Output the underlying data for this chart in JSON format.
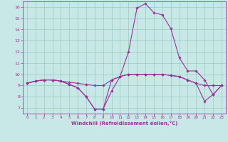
{
  "xlabel": "Windchill (Refroidissement éolien,°C)",
  "hours": [
    0,
    1,
    2,
    3,
    4,
    5,
    6,
    7,
    8,
    9,
    10,
    11,
    12,
    13,
    14,
    15,
    16,
    17,
    18,
    19,
    20,
    21,
    22,
    23
  ],
  "temp": [
    9.2,
    9.4,
    9.5,
    9.5,
    9.4,
    9.3,
    9.2,
    9.1,
    9.0,
    9.0,
    9.5,
    9.8,
    10.0,
    10.0,
    10.0,
    10.0,
    10.0,
    9.9,
    9.8,
    9.5,
    9.2,
    9.0,
    9.0,
    9.0
  ],
  "line1": [
    9.2,
    9.4,
    9.5,
    9.5,
    9.4,
    9.1,
    8.8,
    8.0,
    6.9,
    6.9,
    8.5,
    9.8,
    12.0,
    15.9,
    16.3,
    15.5,
    15.3,
    14.1,
    11.5,
    10.3,
    10.3,
    9.5,
    8.2,
    9.0
  ],
  "line2": [
    9.2,
    9.4,
    9.5,
    9.5,
    9.4,
    9.1,
    8.8,
    8.0,
    6.9,
    6.9,
    9.5,
    9.8,
    10.0,
    10.0,
    10.0,
    10.0,
    10.0,
    9.9,
    9.8,
    9.5,
    9.2,
    7.6,
    8.2,
    9.0
  ],
  "bg_color": "#c8e8e8",
  "line_color": "#993399",
  "grid_color": "#99ccbb",
  "ylim": [
    6.5,
    16.5
  ],
  "yticks": [
    7,
    8,
    9,
    10,
    11,
    12,
    13,
    14,
    15,
    16
  ],
  "xticks": [
    0,
    1,
    2,
    3,
    4,
    5,
    6,
    7,
    8,
    9,
    10,
    11,
    12,
    13,
    14,
    15,
    16,
    17,
    18,
    19,
    20,
    21,
    22,
    23
  ]
}
